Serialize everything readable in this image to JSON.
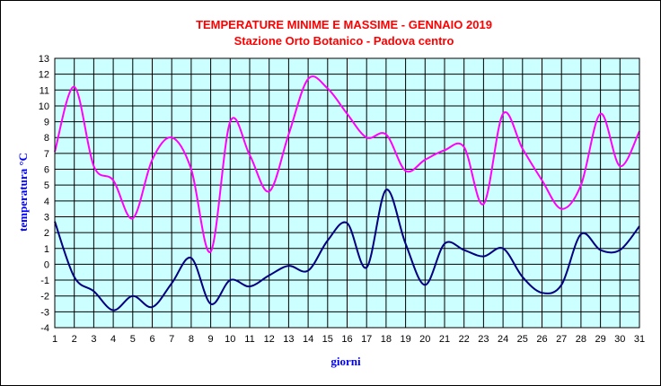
{
  "chart_data": {
    "type": "line",
    "title": "TEMPERATURE MINIME E MASSIME  - GENNAIO 2019",
    "subtitle": "Stazione Orto Botanico - Padova centro",
    "xlabel": "giorni",
    "ylabel": "temperatura °C",
    "x": [
      1,
      2,
      3,
      4,
      5,
      6,
      7,
      8,
      9,
      10,
      11,
      12,
      13,
      14,
      15,
      16,
      17,
      18,
      19,
      20,
      21,
      22,
      23,
      24,
      25,
      26,
      27,
      28,
      29,
      30,
      31
    ],
    "xlim": [
      1,
      31
    ],
    "ylim": [
      -4,
      13
    ],
    "yticks": [
      -4,
      -3,
      -2,
      -1,
      0,
      1,
      2,
      3,
      4,
      5,
      6,
      7,
      8,
      9,
      10,
      11,
      12,
      13
    ],
    "grid": true,
    "legend": "none",
    "plot_background": "#ccffff",
    "series": [
      {
        "color": "#ff00ff",
        "values": [
          7.1,
          11.2,
          6.2,
          5.3,
          2.9,
          6.6,
          8.0,
          6.0,
          0.8,
          9.0,
          6.9,
          4.6,
          8.2,
          11.7,
          11.1,
          9.5,
          8.0,
          8.2,
          5.9,
          6.6,
          7.2,
          7.4,
          3.8,
          9.5,
          7.3,
          5.3,
          3.5,
          5.0,
          9.5,
          6.2,
          8.4
        ]
      },
      {
        "color": "#000080",
        "values": [
          2.7,
          -0.8,
          -1.7,
          -2.9,
          -2.0,
          -2.7,
          -1.2,
          0.4,
          -2.5,
          -1.0,
          -1.4,
          -0.7,
          -0.1,
          -0.4,
          1.5,
          2.6,
          -0.2,
          4.7,
          1.3,
          -1.3,
          1.3,
          0.9,
          0.5,
          1.0,
          -0.8,
          -1.8,
          -1.3,
          1.9,
          0.9,
          0.9,
          2.4
        ]
      }
    ]
  }
}
